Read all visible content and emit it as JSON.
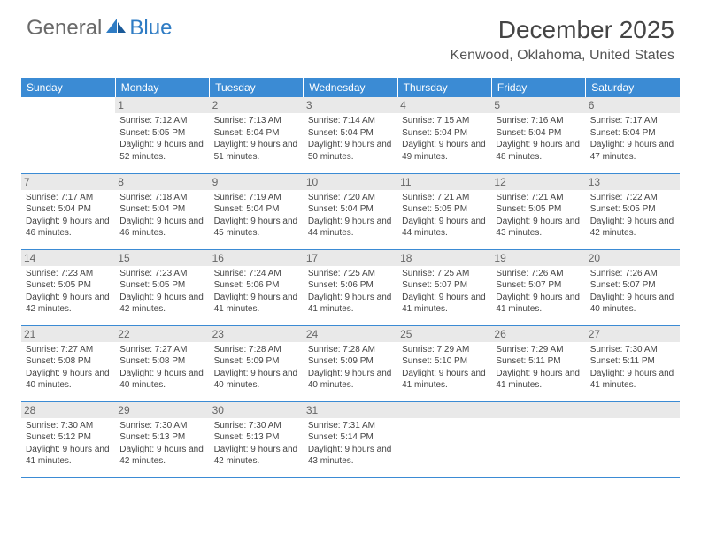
{
  "brand": {
    "general": "General",
    "blue": "Blue"
  },
  "title": "December 2025",
  "location": "Kenwood, Oklahoma, United States",
  "colors": {
    "header_bg": "#3b8bd4",
    "header_text": "#ffffff",
    "rule": "#3b8bd4",
    "daynum_bg": "#e9e9e9",
    "text": "#444444",
    "brand_gray": "#6a6a6a",
    "brand_blue": "#2f7cc4"
  },
  "days_of_week": [
    "Sunday",
    "Monday",
    "Tuesday",
    "Wednesday",
    "Thursday",
    "Friday",
    "Saturday"
  ],
  "weeks": [
    [
      null,
      {
        "n": "1",
        "sr": "7:12 AM",
        "ss": "5:05 PM",
        "dl": "9 hours and 52 minutes."
      },
      {
        "n": "2",
        "sr": "7:13 AM",
        "ss": "5:04 PM",
        "dl": "9 hours and 51 minutes."
      },
      {
        "n": "3",
        "sr": "7:14 AM",
        "ss": "5:04 PM",
        "dl": "9 hours and 50 minutes."
      },
      {
        "n": "4",
        "sr": "7:15 AM",
        "ss": "5:04 PM",
        "dl": "9 hours and 49 minutes."
      },
      {
        "n": "5",
        "sr": "7:16 AM",
        "ss": "5:04 PM",
        "dl": "9 hours and 48 minutes."
      },
      {
        "n": "6",
        "sr": "7:17 AM",
        "ss": "5:04 PM",
        "dl": "9 hours and 47 minutes."
      }
    ],
    [
      {
        "n": "7",
        "sr": "7:17 AM",
        "ss": "5:04 PM",
        "dl": "9 hours and 46 minutes."
      },
      {
        "n": "8",
        "sr": "7:18 AM",
        "ss": "5:04 PM",
        "dl": "9 hours and 46 minutes."
      },
      {
        "n": "9",
        "sr": "7:19 AM",
        "ss": "5:04 PM",
        "dl": "9 hours and 45 minutes."
      },
      {
        "n": "10",
        "sr": "7:20 AM",
        "ss": "5:04 PM",
        "dl": "9 hours and 44 minutes."
      },
      {
        "n": "11",
        "sr": "7:21 AM",
        "ss": "5:05 PM",
        "dl": "9 hours and 44 minutes."
      },
      {
        "n": "12",
        "sr": "7:21 AM",
        "ss": "5:05 PM",
        "dl": "9 hours and 43 minutes."
      },
      {
        "n": "13",
        "sr": "7:22 AM",
        "ss": "5:05 PM",
        "dl": "9 hours and 42 minutes."
      }
    ],
    [
      {
        "n": "14",
        "sr": "7:23 AM",
        "ss": "5:05 PM",
        "dl": "9 hours and 42 minutes."
      },
      {
        "n": "15",
        "sr": "7:23 AM",
        "ss": "5:05 PM",
        "dl": "9 hours and 42 minutes."
      },
      {
        "n": "16",
        "sr": "7:24 AM",
        "ss": "5:06 PM",
        "dl": "9 hours and 41 minutes."
      },
      {
        "n": "17",
        "sr": "7:25 AM",
        "ss": "5:06 PM",
        "dl": "9 hours and 41 minutes."
      },
      {
        "n": "18",
        "sr": "7:25 AM",
        "ss": "5:07 PM",
        "dl": "9 hours and 41 minutes."
      },
      {
        "n": "19",
        "sr": "7:26 AM",
        "ss": "5:07 PM",
        "dl": "9 hours and 41 minutes."
      },
      {
        "n": "20",
        "sr": "7:26 AM",
        "ss": "5:07 PM",
        "dl": "9 hours and 40 minutes."
      }
    ],
    [
      {
        "n": "21",
        "sr": "7:27 AM",
        "ss": "5:08 PM",
        "dl": "9 hours and 40 minutes."
      },
      {
        "n": "22",
        "sr": "7:27 AM",
        "ss": "5:08 PM",
        "dl": "9 hours and 40 minutes."
      },
      {
        "n": "23",
        "sr": "7:28 AM",
        "ss": "5:09 PM",
        "dl": "9 hours and 40 minutes."
      },
      {
        "n": "24",
        "sr": "7:28 AM",
        "ss": "5:09 PM",
        "dl": "9 hours and 40 minutes."
      },
      {
        "n": "25",
        "sr": "7:29 AM",
        "ss": "5:10 PM",
        "dl": "9 hours and 41 minutes."
      },
      {
        "n": "26",
        "sr": "7:29 AM",
        "ss": "5:11 PM",
        "dl": "9 hours and 41 minutes."
      },
      {
        "n": "27",
        "sr": "7:30 AM",
        "ss": "5:11 PM",
        "dl": "9 hours and 41 minutes."
      }
    ],
    [
      {
        "n": "28",
        "sr": "7:30 AM",
        "ss": "5:12 PM",
        "dl": "9 hours and 41 minutes."
      },
      {
        "n": "29",
        "sr": "7:30 AM",
        "ss": "5:13 PM",
        "dl": "9 hours and 42 minutes."
      },
      {
        "n": "30",
        "sr": "7:30 AM",
        "ss": "5:13 PM",
        "dl": "9 hours and 42 minutes."
      },
      {
        "n": "31",
        "sr": "7:31 AM",
        "ss": "5:14 PM",
        "dl": "9 hours and 43 minutes."
      },
      null,
      null,
      null
    ]
  ],
  "labels": {
    "sunrise": "Sunrise: ",
    "sunset": "Sunset: ",
    "daylight": "Daylight: "
  }
}
